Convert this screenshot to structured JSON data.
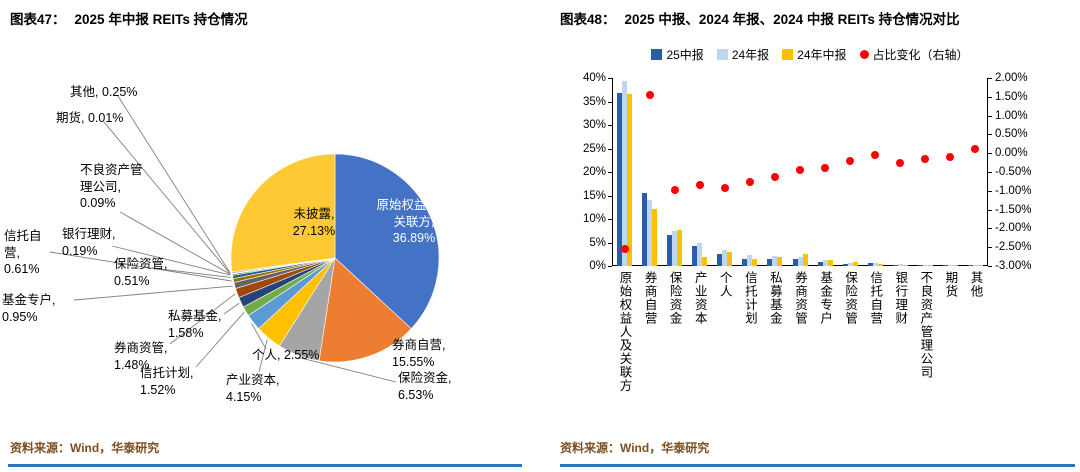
{
  "chart47": {
    "fig_label": "图表47：",
    "title": "2025 年中报 REITs 持仓情况",
    "source": "资料来源：Wind，华泰研究"
  },
  "chart48": {
    "fig_label": "图表48：",
    "title": "2025 中报、2024 年报、2024 中报 REITs 持仓情况对比",
    "source": "资料来源：Wind，华泰研究",
    "legend": [
      "25中报",
      "24年报",
      "24年中报",
      "占比变化（右轴）"
    ]
  },
  "theme": {
    "rule_color": "#2E75B6",
    "source_text_color": "#7F4F24",
    "axis_color": "#000000"
  },
  "chart_data": [
    {
      "type": "pie",
      "title": "2025 年中报 REITs 持仓情况",
      "labels": [
        "原始权益人及关联方",
        "券商自营",
        "保险资金",
        "产业资本",
        "个人",
        "信托计划",
        "私募基金",
        "券商资管",
        "基金专户",
        "信托自营",
        "保险资管",
        "银行理财",
        "不良资产管理公司",
        "期货",
        "其他",
        "未披露"
      ],
      "values": [
        36.89,
        15.55,
        6.53,
        4.15,
        2.55,
        1.52,
        1.58,
        1.48,
        0.95,
        0.61,
        0.51,
        0.19,
        0.09,
        0.01,
        0.25,
        27.13
      ],
      "colors": [
        "#4472C4",
        "#ED7D31",
        "#A5A5A5",
        "#FFC000",
        "#5B9BD5",
        "#70AD47",
        "#264478",
        "#9E480E",
        "#636363",
        "#997300",
        "#255E91",
        "#43682B",
        "#698ED0",
        "#F1975A",
        "#B7B7B7",
        "#FFC933"
      ]
    },
    {
      "type": "bar",
      "title": "2025 中报、2024 年报、2024 中报 REITs 持仓情况对比",
      "categories": [
        "原始权益人及关联方",
        "券商自营",
        "保险资金",
        "产业资本",
        "个人",
        "信托计划",
        "私募基金",
        "券商资管",
        "基金专户",
        "保险资管",
        "信托自营",
        "银行理财",
        "不良资产管理公司",
        "期货",
        "其他"
      ],
      "series": [
        {
          "name": "25中报",
          "axis": "left",
          "kind": "bar",
          "values": [
            36.89,
            15.55,
            6.53,
            4.15,
            2.55,
            1.52,
            1.58,
            1.48,
            0.95,
            0.51,
            0.61,
            0.19,
            0.09,
            0.01,
            0.25
          ]
        },
        {
          "name": "24年报",
          "axis": "left",
          "kind": "bar",
          "values": [
            39.44,
            14.0,
            7.5,
            5.0,
            3.47,
            2.28,
            2.21,
            1.93,
            1.35,
            0.71,
            0.66,
            0.44,
            0.25,
            0.11,
            0.15
          ]
        },
        {
          "name": "24年中报",
          "axis": "left",
          "kind": "bar",
          "values": [
            36.5,
            12.2,
            7.6,
            2.0,
            3.0,
            1.5,
            2.0,
            2.6,
            1.2,
            0.9,
            0.5,
            0.3,
            0.15,
            0.05,
            0.3
          ]
        },
        {
          "name": "占比变化（右轴）",
          "axis": "right",
          "kind": "scatter",
          "values": [
            -2.55,
            1.55,
            -0.97,
            -0.85,
            -0.92,
            -0.76,
            -0.63,
            -0.45,
            -0.4,
            -0.2,
            -0.05,
            -0.25,
            -0.16,
            -0.1,
            0.1
          ]
        }
      ],
      "left_axis": {
        "min": 0,
        "max": 40,
        "ticks": [
          "40%",
          "35%",
          "30%",
          "25%",
          "20%",
          "15%",
          "10%",
          "5%",
          "0%"
        ]
      },
      "right_axis": {
        "min": -3,
        "max": 2,
        "ticks": [
          "2.00%",
          "1.50%",
          "1.00%",
          "0.50%",
          "0.00%",
          "-0.50%",
          "-1.00%",
          "-1.50%",
          "-2.00%",
          "-2.50%",
          "-3.00%"
        ]
      },
      "colors": {
        "s25": "#2A5CAA",
        "s24fy": "#BDD7EE",
        "s24h": "#FFC000",
        "dots": "#FF0000"
      },
      "grid": "off",
      "legend_position": "top"
    }
  ]
}
